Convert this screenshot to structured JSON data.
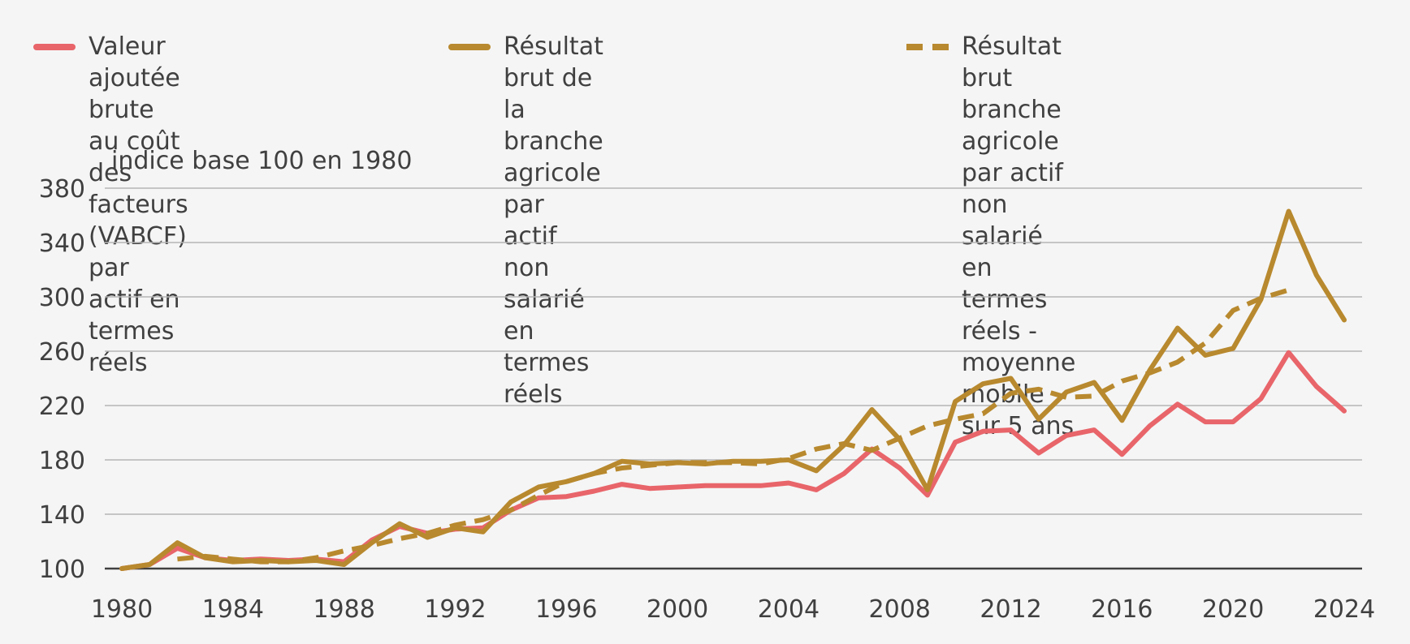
{
  "chart_data": {
    "type": "line",
    "ylabel": "indice base 100 en 1980",
    "ylim": [
      100,
      380
    ],
    "yticks": [
      100,
      140,
      180,
      220,
      260,
      300,
      340,
      380
    ],
    "xticks": [
      1980,
      1984,
      1988,
      1992,
      1996,
      2000,
      2004,
      2008,
      2012,
      2016,
      2020,
      2024
    ],
    "grid": true,
    "legend": "top",
    "series": [
      {
        "name": "Valeur ajoutée brute\nau coût des facteurs (VABCF)\npar actif en termes réels",
        "color": "#e8656a",
        "style": "solid",
        "x": [
          1980,
          1981,
          1982,
          1983,
          1984,
          1985,
          1986,
          1987,
          1988,
          1989,
          1990,
          1991,
          1992,
          1993,
          1994,
          1995,
          1996,
          1997,
          1998,
          1999,
          2000,
          2001,
          2002,
          2003,
          2004,
          2005,
          2006,
          2007,
          2008,
          2009,
          2010,
          2011,
          2012,
          2013,
          2014,
          2015,
          2016,
          2017,
          2018,
          2019,
          2020,
          2021,
          2022,
          2023,
          2024
        ],
        "values": [
          100,
          103,
          115,
          108,
          106,
          107,
          106,
          107,
          105,
          121,
          131,
          126,
          129,
          130,
          143,
          152,
          153,
          157,
          162,
          159,
          160,
          161,
          161,
          161,
          163,
          158,
          170,
          188,
          174,
          154,
          193,
          201,
          202,
          185,
          198,
          202,
          184,
          205,
          221,
          208,
          208,
          225,
          259,
          234,
          216
        ]
      },
      {
        "name": "Résultat brut de la branche\nagricole par actif non salarié\nen termes réels",
        "color": "#b8892e",
        "style": "solid",
        "x": [
          1980,
          1981,
          1982,
          1983,
          1984,
          1985,
          1986,
          1987,
          1988,
          1989,
          1990,
          1991,
          1992,
          1993,
          1994,
          1995,
          1996,
          1997,
          1998,
          1999,
          2000,
          2001,
          2002,
          2003,
          2004,
          2005,
          2006,
          2007,
          2008,
          2009,
          2010,
          2011,
          2012,
          2013,
          2014,
          2015,
          2016,
          2017,
          2018,
          2019,
          2020,
          2021,
          2022,
          2023,
          2024
        ],
        "values": [
          100,
          103,
          119,
          108,
          105,
          106,
          105,
          106,
          103,
          119,
          133,
          123,
          130,
          127,
          149,
          160,
          164,
          170,
          179,
          177,
          178,
          177,
          179,
          179,
          180,
          172,
          191,
          217,
          195,
          158,
          223,
          236,
          240,
          210,
          230,
          237,
          209,
          246,
          277,
          257,
          262,
          298,
          363,
          316,
          283
        ]
      },
      {
        "name": "Résultat brut branche agricole\npar actif non salarié en termes\nréels - moyenne mobile sur 5 ans",
        "color": "#b8892e",
        "style": "dashed",
        "x": [
          1982,
          1983,
          1984,
          1985,
          1986,
          1987,
          1988,
          1989,
          1990,
          1991,
          1992,
          1993,
          1994,
          1995,
          1996,
          1997,
          1998,
          1999,
          2000,
          2001,
          2002,
          2003,
          2004,
          2005,
          2006,
          2007,
          2008,
          2009,
          2010,
          2011,
          2012,
          2013,
          2014,
          2015,
          2016,
          2017,
          2018,
          2019,
          2020,
          2021,
          2022
        ],
        "values": [
          107,
          109,
          107,
          105,
          105,
          108,
          113,
          117,
          122,
          126,
          132,
          136,
          143,
          154,
          164,
          170,
          174,
          176,
          178,
          178,
          178,
          177,
          181,
          188,
          192,
          187,
          196,
          205,
          210,
          214,
          229,
          232,
          226,
          227,
          238,
          244,
          252,
          266,
          290,
          299,
          305
        ]
      }
    ]
  }
}
